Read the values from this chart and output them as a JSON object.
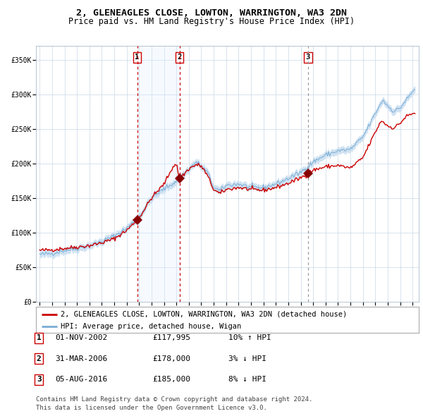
{
  "title": "2, GLENEAGLES CLOSE, LOWTON, WARRINGTON, WA3 2DN",
  "subtitle": "Price paid vs. HM Land Registry's House Price Index (HPI)",
  "ylim": [
    0,
    370000
  ],
  "xlim_start": 1994.7,
  "xlim_end": 2025.5,
  "yticks": [
    0,
    50000,
    100000,
    150000,
    200000,
    250000,
    300000,
    350000
  ],
  "ytick_labels": [
    "£0",
    "£50K",
    "£100K",
    "£150K",
    "£200K",
    "£250K",
    "£300K",
    "£350K"
  ],
  "xticks": [
    1995,
    1996,
    1997,
    1998,
    1999,
    2000,
    2001,
    2002,
    2003,
    2004,
    2005,
    2006,
    2007,
    2008,
    2009,
    2010,
    2011,
    2012,
    2013,
    2014,
    2015,
    2016,
    2017,
    2018,
    2019,
    2020,
    2021,
    2022,
    2023,
    2024,
    2025
  ],
  "sale_color": "#cc0000",
  "hpi_fill_color": "#c8ddf0",
  "hpi_line_color": "#7aadd4",
  "grid_color": "#c8d8e8",
  "bg_color": "#ffffff",
  "sale_marker_color": "#880000",
  "vline_sale_color": "#cc0000",
  "vline3_color": "#999999",
  "shade_color": "#ddeeff",
  "sale1_x": 2002.84,
  "sale1_y": 117995,
  "sale2_x": 2006.25,
  "sale2_y": 178000,
  "sale3_x": 2016.59,
  "sale3_y": 185000,
  "legend_sale_label": "2, GLENEAGLES CLOSE, LOWTON, WARRINGTON, WA3 2DN (detached house)",
  "legend_hpi_label": "HPI: Average price, detached house, Wigan",
  "table_data": [
    {
      "num": "1",
      "date": "01-NOV-2002",
      "price": "£117,995",
      "hpi": "10% ↑ HPI"
    },
    {
      "num": "2",
      "date": "31-MAR-2006",
      "price": "£178,000",
      "hpi": "3% ↓ HPI"
    },
    {
      "num": "3",
      "date": "05-AUG-2016",
      "price": "£185,000",
      "hpi": "8% ↓ HPI"
    }
  ],
  "footnote1": "Contains HM Land Registry data © Crown copyright and database right 2024.",
  "footnote2": "This data is licensed under the Open Government Licence v3.0.",
  "title_fontsize": 9.5,
  "subtitle_fontsize": 8.5,
  "tick_fontsize": 7,
  "legend_fontsize": 7.5,
  "table_fontsize": 8,
  "footnote_fontsize": 6.5
}
